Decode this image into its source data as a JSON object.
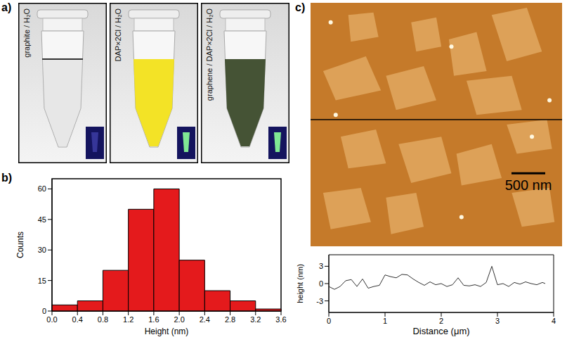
{
  "chart_data": [
    {
      "type": "histogram",
      "x_label": "Height (nm)",
      "y_label": "Counts",
      "bins": [
        0,
        0.4,
        0.8,
        1.2,
        1.6,
        2.0,
        2.4,
        2.8,
        3.2,
        3.6
      ],
      "values": [
        3,
        5,
        20,
        50,
        60,
        25,
        10,
        5,
        1
      ],
      "color": "#e41a1c",
      "xlim": [
        0,
        3.6
      ],
      "xticks": [
        {
          "value": 0,
          "label": "0.0"
        },
        0.4,
        0.8,
        {
          "value": 1.2,
          "label": "1.2"
        },
        1.6,
        {
          "value": 2.0,
          "label": "2.0"
        },
        2.4,
        2.8,
        3.2,
        3.6
      ],
      "ylim": [
        0,
        65
      ],
      "yticks": [
        0,
        15,
        30,
        45,
        60
      ]
    },
    {
      "type": "line",
      "x_label": "Distance (μm)",
      "y_label": "height (nm)",
      "x": [
        0,
        0.1,
        0.2,
        0.3,
        0.4,
        0.5,
        0.6,
        0.7,
        0.8,
        0.9,
        1.0,
        1.1,
        1.2,
        1.3,
        1.4,
        1.5,
        1.6,
        1.7,
        1.8,
        1.9,
        2.0,
        2.1,
        2.2,
        2.3,
        2.4,
        2.5,
        2.6,
        2.7,
        2.8,
        2.9,
        3.0,
        3.1,
        3.2,
        3.3,
        3.4,
        3.5,
        3.6,
        3.7,
        3.8,
        3.85
      ],
      "values": [
        -0.5,
        -1,
        -0.5,
        0.5,
        0.7,
        -0.5,
        0.8,
        -0.8,
        -0.5,
        -0.3,
        1.5,
        1.2,
        1.0,
        1.6,
        1.5,
        0.8,
        0.2,
        -0.3,
        0.3,
        -0.2,
        0,
        -0.5,
        -0.2,
        1.0,
        -0.3,
        -0.4,
        -0.2,
        -0.5,
        0.2,
        3.0,
        -0.2,
        0,
        -0.5,
        0.2,
        -0.1,
        0.3,
        0,
        -0.2,
        0.2,
        0
      ],
      "color": "#333333",
      "xlim": [
        0,
        4
      ],
      "xticks": [
        0,
        1,
        2,
        3,
        4
      ],
      "ylim": [
        -5,
        5
      ],
      "yticks": [
        -3,
        0,
        3
      ]
    }
  ],
  "figure": {
    "panel_labels": [
      "a)",
      "b)",
      "c)"
    ],
    "photos": [
      {
        "label": "graphite / H₂O",
        "color": "#c8c8c8"
      },
      {
        "label": "DAP×2Cl / H₂O",
        "color": "#f2e21a"
      },
      {
        "label": "graphene / DAP×2Cl / H₂O",
        "color": "#3b4a2a"
      }
    ],
    "afm_image": {
      "scale_bar": "500 nm"
    }
  }
}
